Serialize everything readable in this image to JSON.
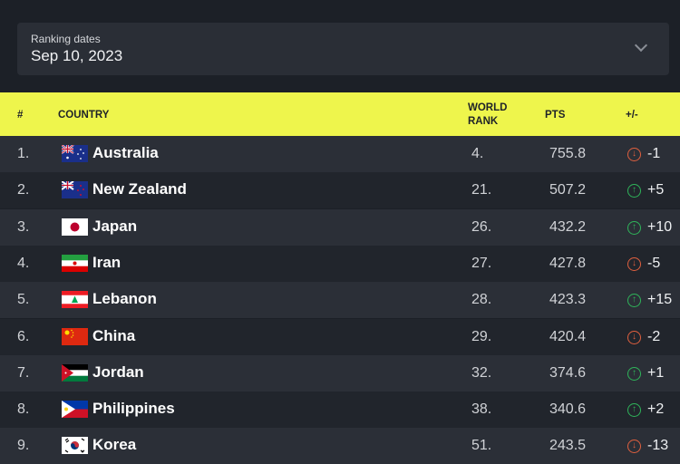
{
  "filter": {
    "label": "Ranking dates",
    "value": "Sep 10, 2023"
  },
  "header": {
    "rank": "#",
    "country": "COUNTRY",
    "world_rank_1": "WORLD",
    "world_rank_2": "RANK",
    "pts": "PTS",
    "change": "+/-"
  },
  "colors": {
    "up": "#2fb45a",
    "down": "#e0603f",
    "accent": "#eef54c"
  },
  "rows": [
    {
      "pos": "1.",
      "country": "Australia",
      "flag": "AU",
      "world_rank": "4.",
      "pts": "755.8",
      "change": "-1",
      "dir": "down"
    },
    {
      "pos": "2.",
      "country": "New Zealand",
      "flag": "NZ",
      "world_rank": "21.",
      "pts": "507.2",
      "change": "+5",
      "dir": "up"
    },
    {
      "pos": "3.",
      "country": "Japan",
      "flag": "JP",
      "world_rank": "26.",
      "pts": "432.2",
      "change": "+10",
      "dir": "up"
    },
    {
      "pos": "4.",
      "country": "Iran",
      "flag": "IR",
      "world_rank": "27.",
      "pts": "427.8",
      "change": "-5",
      "dir": "down"
    },
    {
      "pos": "5.",
      "country": "Lebanon",
      "flag": "LB",
      "world_rank": "28.",
      "pts": "423.3",
      "change": "+15",
      "dir": "up"
    },
    {
      "pos": "6.",
      "country": "China",
      "flag": "CN",
      "world_rank": "29.",
      "pts": "420.4",
      "change": "-2",
      "dir": "down"
    },
    {
      "pos": "7.",
      "country": "Jordan",
      "flag": "JO",
      "world_rank": "32.",
      "pts": "374.6",
      "change": "+1",
      "dir": "up"
    },
    {
      "pos": "8.",
      "country": "Philippines",
      "flag": "PH",
      "world_rank": "38.",
      "pts": "340.6",
      "change": "+2",
      "dir": "up"
    },
    {
      "pos": "9.",
      "country": "Korea",
      "flag": "KR",
      "world_rank": "51.",
      "pts": "243.5",
      "change": "-13",
      "dir": "down"
    }
  ]
}
